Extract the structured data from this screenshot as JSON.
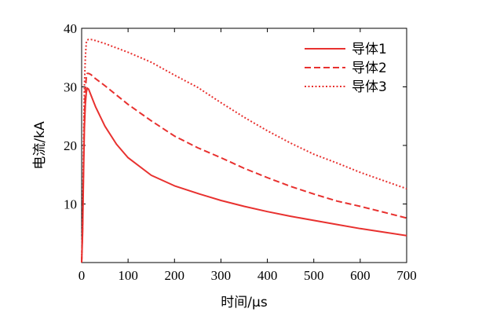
{
  "chart_data": {
    "type": "line",
    "title": "",
    "xlabel": "时间/μs",
    "ylabel": "电流/kA",
    "xlim": [
      0,
      700
    ],
    "ylim": [
      0,
      40
    ],
    "xticks": [
      0,
      100,
      200,
      300,
      400,
      500,
      600,
      700
    ],
    "yticks": [
      10,
      20,
      30,
      40
    ],
    "grid": false,
    "legend_position": "top-right",
    "series": [
      {
        "name": "导体1",
        "style": "solid",
        "color": "#e8312f",
        "x": [
          0,
          2,
          4,
          6,
          8,
          10,
          12,
          15,
          20,
          30,
          50,
          75,
          100,
          150,
          200,
          250,
          300,
          350,
          400,
          450,
          500,
          550,
          600,
          650,
          700
        ],
        "y": [
          0,
          5,
          15,
          23,
          27,
          29,
          29.8,
          29.6,
          28.6,
          26.6,
          23.3,
          20.2,
          17.9,
          14.9,
          13.1,
          11.8,
          10.6,
          9.6,
          8.7,
          7.9,
          7.2,
          6.5,
          5.8,
          5.2,
          4.6
        ]
      },
      {
        "name": "导体2",
        "style": "dashed",
        "color": "#e8312f",
        "x": [
          0,
          2,
          4,
          6,
          8,
          10,
          12,
          15,
          20,
          30,
          50,
          100,
          150,
          200,
          250,
          300,
          350,
          400,
          450,
          500,
          550,
          600,
          650,
          700
        ],
        "y": [
          0,
          6,
          17,
          25,
          29.5,
          31.5,
          32.3,
          32.3,
          32.1,
          31.4,
          30.2,
          27.0,
          24.2,
          21.6,
          19.6,
          17.9,
          16.1,
          14.5,
          13.0,
          11.7,
          10.5,
          9.6,
          8.6,
          7.6
        ]
      },
      {
        "name": "导体3",
        "style": "dotted",
        "color": "#e8312f",
        "x": [
          0,
          2,
          4,
          6,
          8,
          10,
          12,
          15,
          20,
          30,
          50,
          100,
          150,
          200,
          250,
          300,
          350,
          400,
          450,
          500,
          550,
          600,
          650,
          700
        ],
        "y": [
          0,
          8,
          20,
          30,
          35,
          37.5,
          38.0,
          38.1,
          38.1,
          37.9,
          37.4,
          35.9,
          34.2,
          32.0,
          29.9,
          27.3,
          24.8,
          22.5,
          20.4,
          18.5,
          17.0,
          15.4,
          14.0,
          12.6
        ]
      }
    ]
  }
}
